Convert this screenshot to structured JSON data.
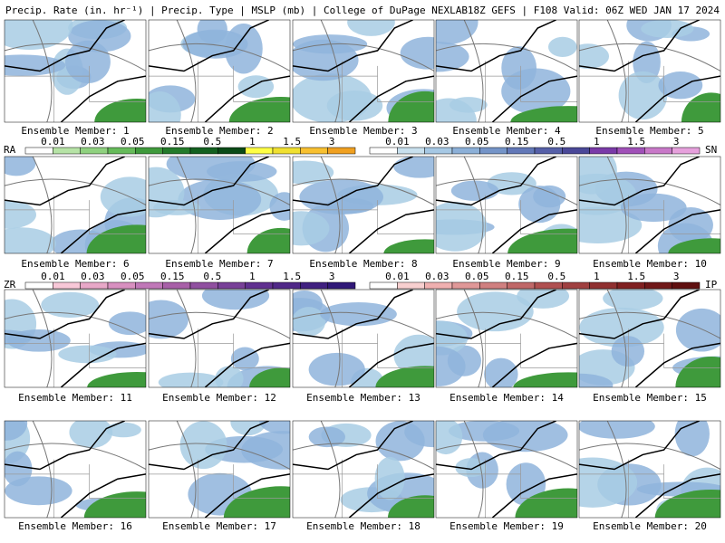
{
  "header": {
    "left": "Precip. Rate (in. hr⁻¹) | Precip. Type | MSLP (mb) | College of DuPage NEXLAB",
    "right": "18Z GEFS | F108 Valid: 06Z WED JAN 17 2024"
  },
  "panels": [
    "Ensemble Member: 1",
    "Ensemble Member: 2",
    "Ensemble Member: 3",
    "Ensemble Member: 4",
    "Ensemble Member: 5",
    "Ensemble Member: 6",
    "Ensemble Member: 7",
    "Ensemble Member: 8",
    "Ensemble Member: 9",
    "Ensemble Member: 10",
    "Ensemble Member: 11",
    "Ensemble Member: 12",
    "Ensemble Member: 13",
    "Ensemble Member: 14",
    "Ensemble Member: 15",
    "Ensemble Member: 16",
    "Ensemble Member: 17",
    "Ensemble Member: 18",
    "Ensemble Member: 19",
    "Ensemble Member: 20"
  ],
  "legends": [
    {
      "name": "RA",
      "ticks": [
        0.01,
        0.03,
        0.05,
        0.15,
        0.5,
        1,
        1.5,
        3
      ],
      "colors": [
        "#ffffff",
        "#b6e3a6",
        "#8fd17f",
        "#66bb5a",
        "#3f9a3c",
        "#237a2a",
        "#13601f",
        "#0a4a16",
        "#ffff44",
        "#f0e030",
        "#f8c030",
        "#f0a020"
      ]
    },
    {
      "name": "SN",
      "ticks": [
        0.01,
        0.03,
        0.05,
        0.15,
        0.5,
        1,
        1.5,
        3
      ],
      "colors": [
        "#ffffff",
        "#c8e0ee",
        "#a6c8e4",
        "#8cb0d8",
        "#7494c8",
        "#6278b8",
        "#5660a8",
        "#4a4898",
        "#7a3aa8",
        "#a050b8",
        "#c878c8",
        "#e6a0dc"
      ]
    },
    {
      "name": "ZR",
      "ticks": [
        0.01,
        0.03,
        0.05,
        0.15,
        0.5,
        1,
        1.5,
        3
      ],
      "colors": [
        "#ffffff",
        "#f8c8d8",
        "#e8a8c8",
        "#d890c0",
        "#c078b8",
        "#a860a8",
        "#9050a0",
        "#784098",
        "#603090",
        "#502888",
        "#402080",
        "#301878"
      ]
    },
    {
      "name": "IP",
      "ticks": [
        0.01,
        0.03,
        0.05,
        0.15,
        0.5,
        1,
        1.5,
        3
      ],
      "colors": [
        "#ffffff",
        "#f8d0d0",
        "#f0b0b0",
        "#e09898",
        "#d08080",
        "#c06868",
        "#b05050",
        "#a04040",
        "#903030",
        "#802020",
        "#701818",
        "#601010"
      ]
    }
  ]
}
